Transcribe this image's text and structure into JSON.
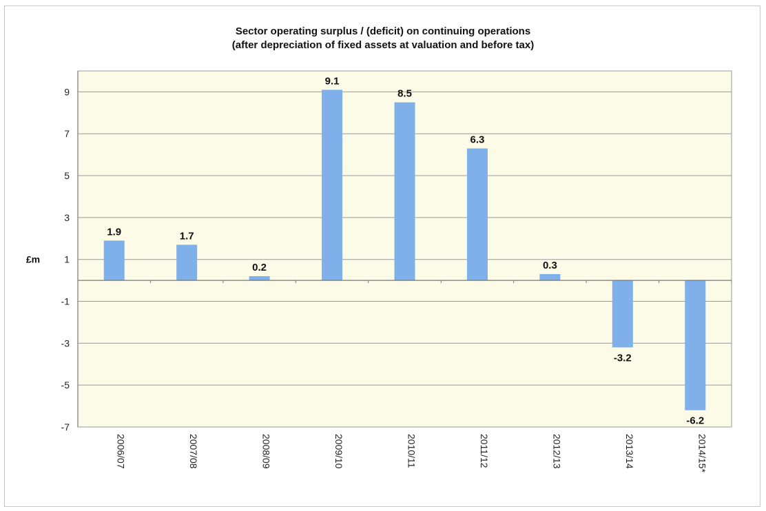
{
  "chart_data": {
    "type": "bar",
    "title": "Sector operating surplus / (deficit) on continuing operations",
    "subtitle": "(after depreciation of fixed assets at valuation and before tax)",
    "ylabel": "£m",
    "xlabel": "",
    "categories": [
      "2006/07",
      "2007/08",
      "2008/09",
      "2009/10",
      "2010/11",
      "2011/12",
      "2012/13",
      "2013/14",
      "2014/15*"
    ],
    "values": [
      1.9,
      1.7,
      0.2,
      9.1,
      8.5,
      6.3,
      0.3,
      -3.2,
      -6.2
    ],
    "data_labels": [
      "1.9",
      "1.7",
      "0.2",
      "9.1",
      "8.5",
      "6.3",
      "0.3",
      "-3.2",
      "-6.2"
    ],
    "yticks": [
      9,
      7,
      5,
      3,
      1,
      -1,
      -3,
      -5,
      -7
    ],
    "ylim": [
      -7,
      10
    ],
    "grid": true,
    "legend": "none",
    "colors": {
      "bar": "#7fb0ea",
      "plot_bg": "#fbfbe8",
      "grid": "#9a9a9a"
    }
  }
}
